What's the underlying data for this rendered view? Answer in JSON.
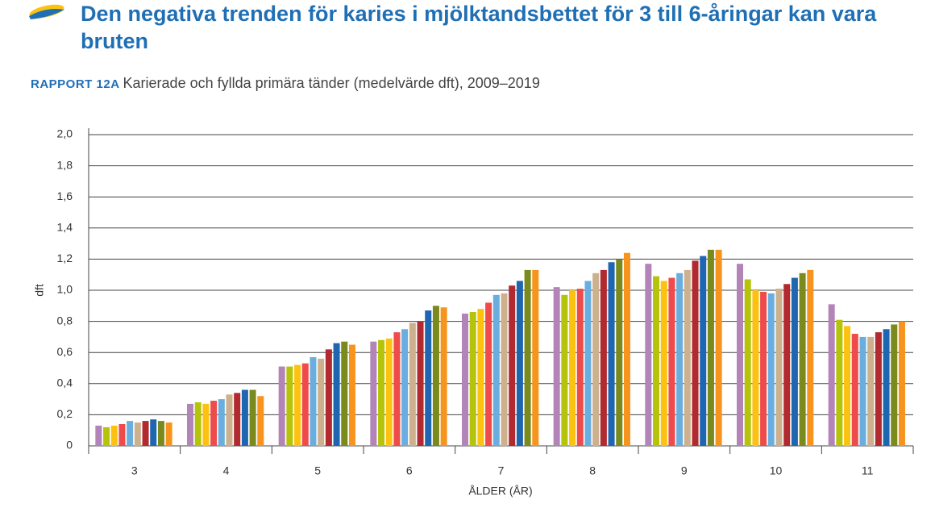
{
  "chart_data": {
    "type": "bar",
    "title": "Den negativa trenden för karies i mjölktandsbettet för 3 till 6-åringar kan vara bruten",
    "report_label": "RAPPORT 12A",
    "subtitle": "Karierade och fyllda primära tänder (medelvärde dft), 2009–2019",
    "y_label": "dft",
    "x_label": "ÅLDER (ÅR)",
    "categories": [
      "3",
      "4",
      "5",
      "6",
      "7",
      "8",
      "9",
      "10",
      "11"
    ],
    "series": [
      {
        "color": "#b384b8",
        "values": [
          0.13,
          0.27,
          0.51,
          0.67,
          0.85,
          1.02,
          1.17,
          1.17,
          0.91
        ]
      },
      {
        "color": "#b5c40a",
        "values": [
          0.12,
          0.28,
          0.51,
          0.68,
          0.86,
          0.97,
          1.09,
          1.07,
          0.81
        ]
      },
      {
        "color": "#fdc20f",
        "values": [
          0.13,
          0.27,
          0.52,
          0.69,
          0.88,
          1.0,
          1.06,
          1.0,
          0.77
        ]
      },
      {
        "color": "#ef4b4b",
        "values": [
          0.14,
          0.29,
          0.53,
          0.73,
          0.92,
          1.01,
          1.08,
          0.99,
          0.72
        ]
      },
      {
        "color": "#6aaee0",
        "values": [
          0.16,
          0.3,
          0.57,
          0.75,
          0.97,
          1.06,
          1.11,
          0.98,
          0.7
        ]
      },
      {
        "color": "#cdb08e",
        "values": [
          0.15,
          0.33,
          0.56,
          0.79,
          0.98,
          1.11,
          1.13,
          1.01,
          0.7
        ]
      },
      {
        "color": "#b02a2f",
        "values": [
          0.16,
          0.34,
          0.62,
          0.8,
          1.03,
          1.13,
          1.19,
          1.04,
          0.73
        ]
      },
      {
        "color": "#1f66b0",
        "values": [
          0.17,
          0.36,
          0.66,
          0.87,
          1.06,
          1.18,
          1.22,
          1.08,
          0.75
        ]
      },
      {
        "color": "#7b8a1c",
        "values": [
          0.16,
          0.36,
          0.67,
          0.9,
          1.13,
          1.2,
          1.26,
          1.11,
          0.78
        ]
      },
      {
        "color": "#f7941d",
        "values": [
          0.15,
          0.32,
          0.65,
          0.89,
          1.13,
          1.24,
          1.26,
          1.13,
          0.8
        ]
      }
    ],
    "ylim": [
      0,
      2
    ],
    "yticks": [
      0,
      {
        "value": 0.2,
        "label": "0,2"
      },
      {
        "value": 0.4,
        "label": "0,4"
      },
      {
        "value": 0.6,
        "label": "0,6"
      },
      {
        "value": 0.8,
        "label": "0,8"
      },
      {
        "value": 1.0,
        "label": "1,0"
      },
      {
        "value": 1.2,
        "label": "1,2"
      },
      {
        "value": 1.4,
        "label": "1,4"
      },
      {
        "value": 1.6,
        "label": "1,6"
      },
      {
        "value": 1.8,
        "label": "1,8"
      },
      {
        "value": 2.0,
        "label": "2,0"
      }
    ],
    "grid": true
  }
}
